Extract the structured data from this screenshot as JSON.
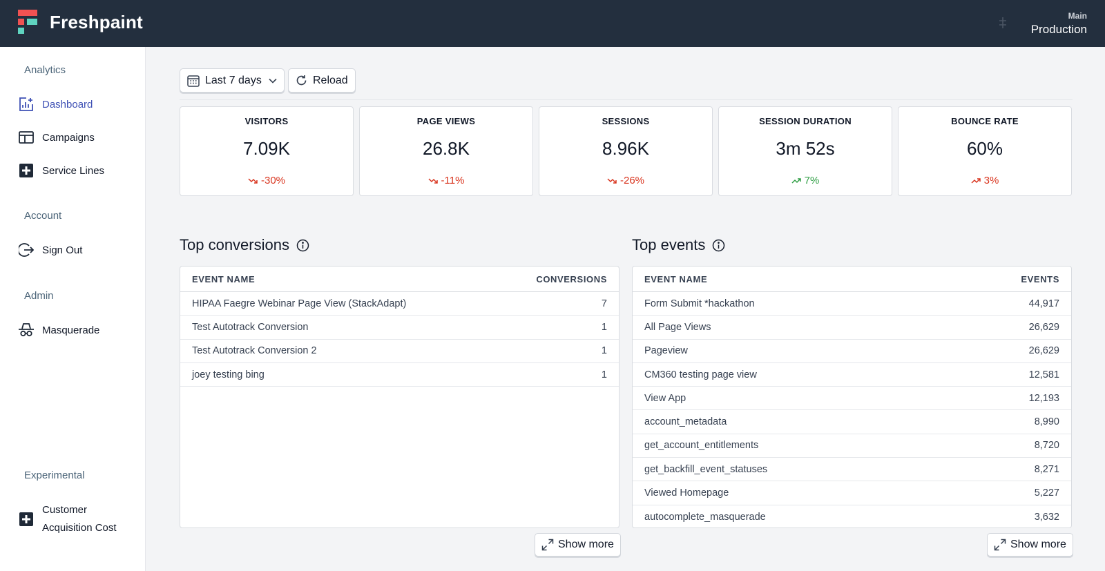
{
  "app": {
    "brand": "Freshpaint",
    "env_label": "Main",
    "env_name": "Production"
  },
  "colors": {
    "topbar": "#232f3e",
    "accent": "#3f51b5",
    "negative": "#d9351f",
    "positive": "#2f9e44",
    "logo_red": "#f05252",
    "logo_teal": "#5fd4c0"
  },
  "sidebar": {
    "sections": [
      {
        "title": "Analytics",
        "items": [
          {
            "label": "Dashboard",
            "icon": "chart-add-icon",
            "active": true
          },
          {
            "label": "Campaigns",
            "icon": "browser-window-icon",
            "active": false
          },
          {
            "label": "Service Lines",
            "icon": "plus-square-icon",
            "active": false
          }
        ]
      },
      {
        "title": "Account",
        "items": [
          {
            "label": "Sign Out",
            "icon": "sign-out-icon",
            "active": false
          }
        ]
      },
      {
        "title": "Admin",
        "items": [
          {
            "label": "Masquerade",
            "icon": "spy-hat-icon",
            "active": false
          }
        ]
      },
      {
        "title": "Experimental",
        "items": [
          {
            "label_line1": "Customer",
            "label_line2": "Acquisition Cost",
            "icon": "plus-square-icon",
            "active": false
          }
        ]
      }
    ]
  },
  "toolbar": {
    "date_range": "Last 7 days",
    "reload": "Reload"
  },
  "stats": [
    {
      "label": "VISITORS",
      "value": "7.09K",
      "delta": "-30%",
      "trend": "down",
      "sentiment": "negative"
    },
    {
      "label": "PAGE VIEWS",
      "value": "26.8K",
      "delta": "-11%",
      "trend": "down",
      "sentiment": "negative"
    },
    {
      "label": "SESSIONS",
      "value": "8.96K",
      "delta": "-26%",
      "trend": "down",
      "sentiment": "negative"
    },
    {
      "label": "SESSION DURATION",
      "value": "3m 52s",
      "delta": "7%",
      "trend": "up",
      "sentiment": "positive"
    },
    {
      "label": "BOUNCE RATE",
      "value": "60%",
      "delta": "3%",
      "trend": "up",
      "sentiment": "negative"
    }
  ],
  "conversions": {
    "title": "Top conversions",
    "columns": [
      "EVENT NAME",
      "CONVERSIONS"
    ],
    "rows": [
      {
        "name": "HIPAA Faegre Webinar Page View (StackAdapt)",
        "value": "7"
      },
      {
        "name": "Test Autotrack Conversion",
        "value": "1"
      },
      {
        "name": "Test Autotrack Conversion 2",
        "value": "1"
      },
      {
        "name": "joey testing bing",
        "value": "1"
      }
    ],
    "show_more": "Show more"
  },
  "events": {
    "title": "Top events",
    "columns": [
      "EVENT NAME",
      "EVENTS"
    ],
    "rows": [
      {
        "name": "Form Submit *hackathon",
        "value": "44,917"
      },
      {
        "name": "All Page Views",
        "value": "26,629"
      },
      {
        "name": "Pageview",
        "value": "26,629"
      },
      {
        "name": "CM360 testing page view",
        "value": "12,581"
      },
      {
        "name": "View App",
        "value": "12,193"
      },
      {
        "name": "account_metadata",
        "value": "8,990"
      },
      {
        "name": "get_account_entitlements",
        "value": "8,720"
      },
      {
        "name": "get_backfill_event_statuses",
        "value": "8,271"
      },
      {
        "name": "Viewed Homepage",
        "value": "5,227"
      },
      {
        "name": "autocomplete_masquerade",
        "value": "3,632"
      }
    ],
    "show_more": "Show more"
  }
}
